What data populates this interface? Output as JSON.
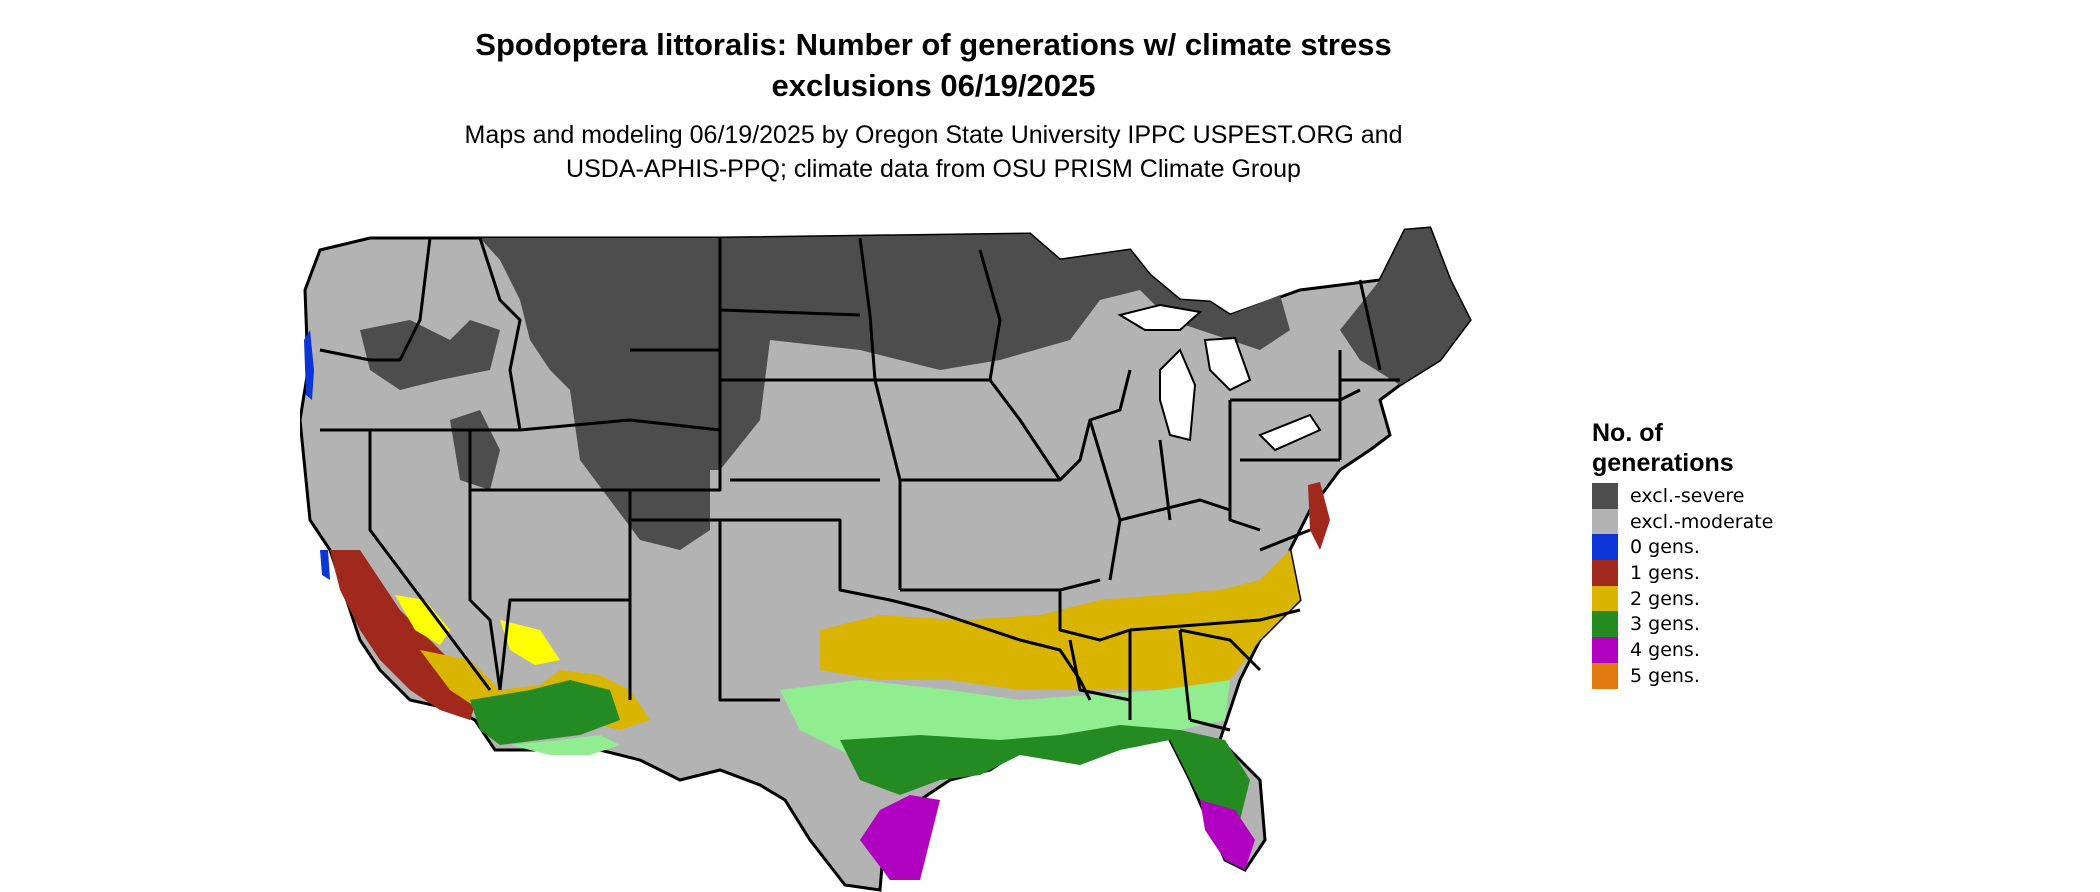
{
  "title": {
    "line1": "Spodoptera littoralis: Number of generations w/ climate stress",
    "line2": "exclusions 06/19/2025"
  },
  "subtitle": {
    "line1": "Maps and modeling 06/19/2025 by Oregon State University IPPC USPEST.ORG and",
    "line2": "USDA-APHIS-PPQ; climate data from OSU PRISM Climate Group"
  },
  "legend": {
    "title_line1": "No. of",
    "title_line2": "generations",
    "items": [
      {
        "label": "excl.-severe",
        "color": "#4d4d4d"
      },
      {
        "label": "excl.-moderate",
        "color": "#b3b3b3"
      },
      {
        "label": "0 gens.",
        "color": "#0b35d6"
      },
      {
        "label": "1 gens.",
        "color": "#a0281c"
      },
      {
        "label": "2 gens.",
        "color": "#d9b400"
      },
      {
        "label": "3 gens.",
        "color": "#238b22"
      },
      {
        "label": "4 gens.",
        "color": "#b000c0"
      },
      {
        "label": "5 gens.",
        "color": "#e07a10"
      }
    ]
  },
  "map_colors": {
    "state_border": "#000000",
    "light_green": "#90ee90",
    "bright_yellow": "#ffff00",
    "magenta": "#ff00ff"
  }
}
